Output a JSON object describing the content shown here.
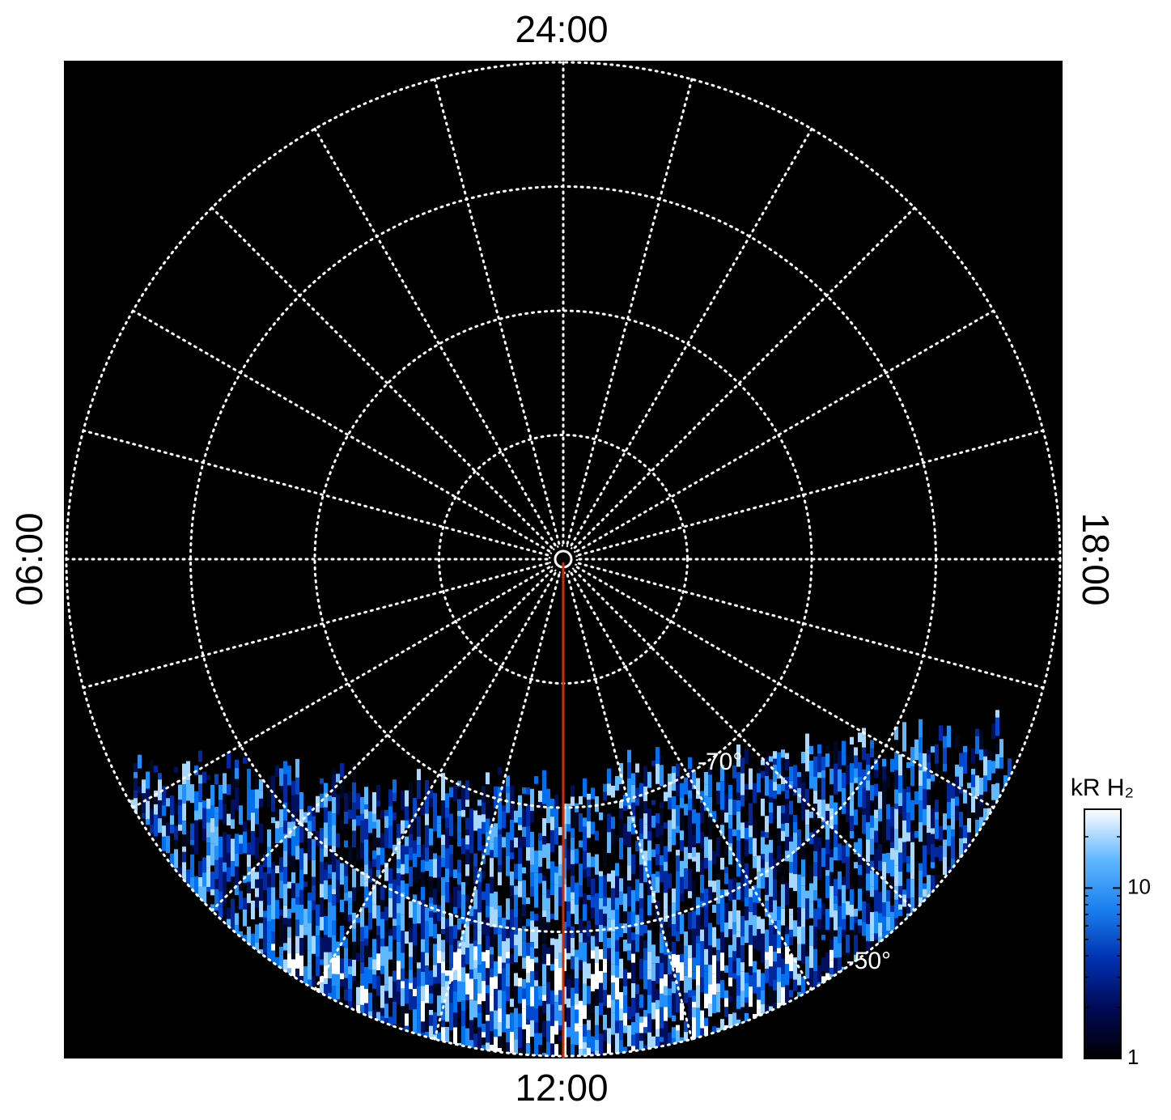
{
  "chart_data": {
    "type": "polar",
    "local_time_labels": [
      "24:00",
      "06:00",
      "12:00",
      "18:00"
    ],
    "rlim": [
      -90,
      -50
    ],
    "rticks": [
      -80,
      -70,
      -60,
      -50
    ],
    "rtick_labels": [
      null,
      "-70°",
      null,
      "-50°"
    ],
    "grid": true,
    "colorbar": {
      "label": "kR H₂",
      "scale": "log",
      "lim": [
        1,
        29
      ],
      "ticks": [
        1,
        10
      ],
      "colors": [
        "#000000",
        "#000a55",
        "#0030b0",
        "#1a80f0",
        "#60b8ff",
        "#ffffff"
      ]
    }
  }
}
